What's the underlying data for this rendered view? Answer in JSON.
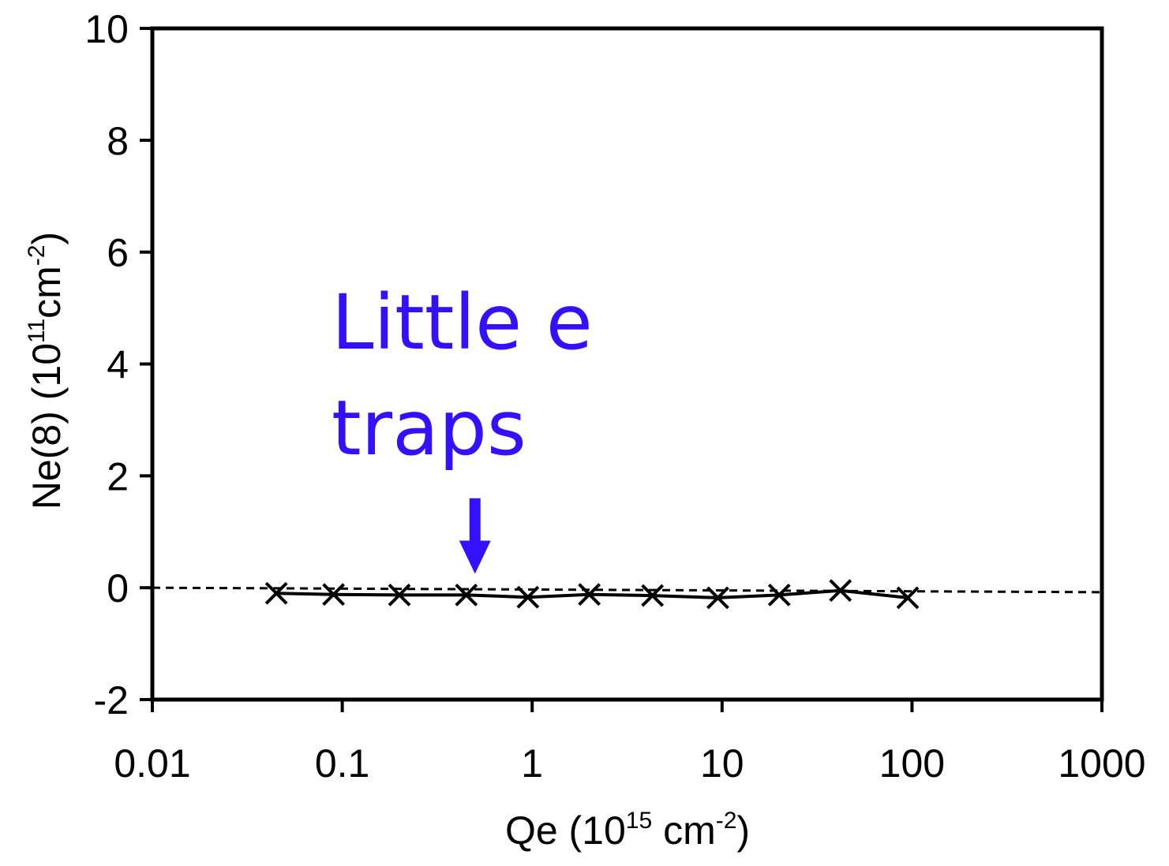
{
  "chart_data": {
    "type": "line",
    "xscale": "log",
    "xlim": [
      0.01,
      1000
    ],
    "ylim": [
      -2,
      10
    ],
    "x_ticks": [
      0.01,
      0.1,
      1,
      10,
      100,
      1000
    ],
    "x_tick_labels": [
      "0.01",
      "0.1",
      "1",
      "10",
      "100",
      "1000"
    ],
    "y_ticks": [
      -2,
      0,
      2,
      4,
      6,
      8,
      10
    ],
    "y_tick_labels": [
      "-2",
      "0",
      "2",
      "4",
      "6",
      "8",
      "10"
    ],
    "xlabel": {
      "base": "Qe (10",
      "exp": "15",
      "mid": " cm",
      "exp2": "-2",
      "end": ")"
    },
    "ylabel": {
      "base": "Ne(8) (10",
      "exp": "11",
      "mid": "cm",
      "exp2": "-2",
      "end": ")"
    },
    "grid": false,
    "legend": "none",
    "series": [
      {
        "marker": "x",
        "line": "solid",
        "color": "#000000",
        "x": [
          0.045,
          0.09,
          0.2,
          0.45,
          0.95,
          2.0,
          4.3,
          9.5,
          20,
          42,
          95
        ],
        "y": [
          -0.1,
          -0.12,
          -0.13,
          -0.13,
          -0.17,
          -0.12,
          -0.14,
          -0.18,
          -0.13,
          -0.05,
          -0.18
        ]
      }
    ],
    "reference_line": {
      "style": "dashed",
      "color": "#000000",
      "x": [
        0.01,
        1000
      ],
      "y": [
        0.0,
        -0.08
      ]
    },
    "annotation": {
      "lines": [
        "Little e",
        "traps"
      ],
      "color": "#3311ff",
      "arrow_x": 0.5,
      "arrow_y_tip": 0.25,
      "arrow_y_tail": 1.6
    }
  }
}
